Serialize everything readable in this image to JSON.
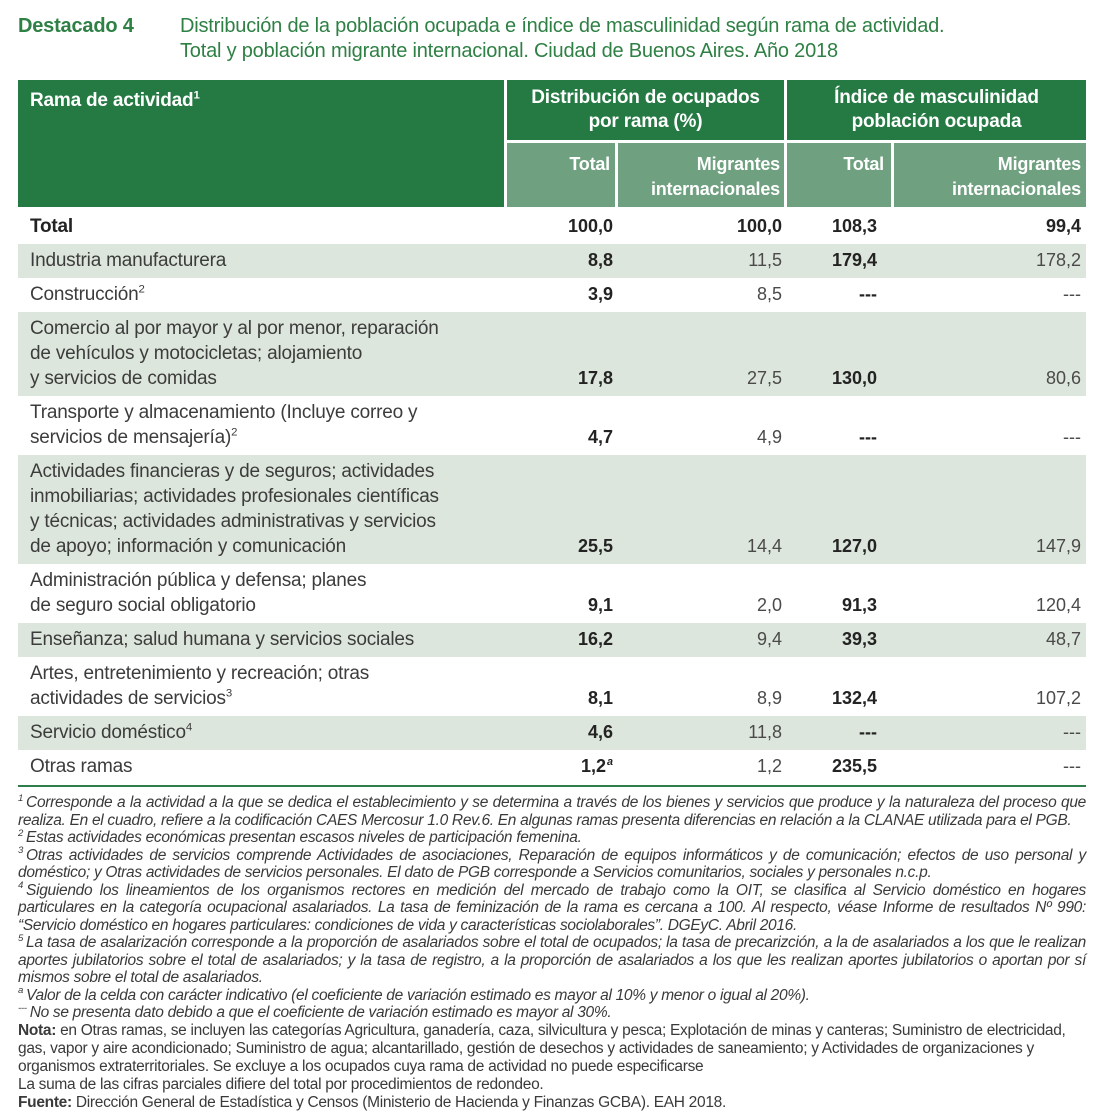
{
  "colors": {
    "header_green": "#257a43",
    "subheader_green": "#6fa07f",
    "row_stripe": "#dde6dc",
    "title_green": "#2e8044",
    "rule_green": "#2e7d4b"
  },
  "page": {
    "kicker": "Destacado 4",
    "title": "Distribución de la población ocupada e índice de masculinidad según rama de actividad.\nTotal y población migrante internacional. Ciudad de Buenos Aires. Año 2018"
  },
  "table": {
    "col_rama_label": "Rama de actividad",
    "col_rama_sup": "1",
    "group1": "Distribución de ocupados\npor rama (%)",
    "group2": "Índice de masculinidad\npoblación ocupada",
    "sub_total1": "Total",
    "sub_migr1": "Migrantes\ninternacionales",
    "sub_total2": "Total",
    "sub_migr2": "Migrantes\ninternacionales",
    "rows": [
      {
        "label": "Total",
        "d_total": "100,0",
        "d_migr": "100,0",
        "m_total": "108,3",
        "m_migr": "99,4"
      },
      {
        "label": "Industria manufacturera",
        "d_total": "8,8",
        "d_migr": "11,5",
        "m_total": "179,4",
        "m_migr": "178,2"
      },
      {
        "label": "Construcción",
        "sup": "2",
        "d_total": "3,9",
        "d_migr": "8,5",
        "m_total": "---",
        "m_migr": "---"
      },
      {
        "label": "Comercio al por mayor y al por menor, reparación\nde vehículos y motocicletas; alojamiento\ny servicios de comidas",
        "d_total": "17,8",
        "d_migr": "27,5",
        "m_total": "130,0",
        "m_migr": "80,6"
      },
      {
        "label": "Transporte y almacenamiento (Incluye correo y\nservicios de mensajería)",
        "sup": "2",
        "d_total": "4,7",
        "d_migr": "4,9",
        "m_total": "---",
        "m_migr": "---"
      },
      {
        "label": "Actividades financieras y de seguros; actividades\ninmobiliarias; actividades profesionales científicas\ny técnicas; actividades administrativas y servicios\nde apoyo; información y comunicación",
        "d_total": "25,5",
        "d_migr": "14,4",
        "m_total": "127,0",
        "m_migr": "147,9"
      },
      {
        "label": "Administración pública y defensa; planes\nde seguro social obligatorio",
        "d_total": "9,1",
        "d_migr": "2,0",
        "m_total": "91,3",
        "m_migr": "120,4"
      },
      {
        "label": "Enseñanza; salud humana y servicios sociales",
        "d_total": "16,2",
        "d_migr": "9,4",
        "m_total": "39,3",
        "m_migr": "48,7"
      },
      {
        "label": "Artes, entretenimiento y recreación; otras\nactividades de servicios",
        "sup": "3",
        "d_total": "8,1",
        "d_migr": "8,9",
        "m_total": "132,4",
        "m_migr": "107,2"
      },
      {
        "label": "Servicio doméstico",
        "sup": "4",
        "d_total": "4,6",
        "d_migr": "11,8",
        "m_total": "---",
        "m_migr": "---"
      },
      {
        "label": "Otras ramas",
        "d_total": "1,2",
        "d_total_sup": "a",
        "d_migr": "1,2",
        "m_total": "235,5",
        "m_migr": "---"
      }
    ]
  },
  "footnotes": [
    {
      "marker": "1",
      "text": "Corresponde a la actividad a la que se dedica el establecimiento y se determina a través de los bienes y servicios que produce y la naturaleza del proceso que realiza. En el cuadro, refiere a la codificación CAES Mercosur 1.0 Rev.6. En algunas ramas presenta diferencias en relación a la CLANAE utilizada para el PGB."
    },
    {
      "marker": "2",
      "text": "Estas actividades económicas presentan escasos niveles de participación femenina."
    },
    {
      "marker": "3",
      "text": "Otras actividades de servicios comprende Actividades de asociaciones, Reparación de equipos informáticos y de comunicación; efectos de uso personal y doméstico; y Otras actividades de servicios personales. El dato de PGB corresponde a  Servicios comunitarios, sociales y personales n.c.p."
    },
    {
      "marker": "4",
      "text": "Siguiendo los lineamientos de los organismos rectores en medición del mercado de trabajo como la OIT, se clasifica al Servicio doméstico en hogares particulares en la categoría ocupacional asalariados. La tasa de feminización de la rama es cercana a 100. Al respecto, véase Informe de resultados Nº 990: “Servicio doméstico en hogares particulares: condiciones de vida y características sociolaborales”. DGEyC. Abril 2016."
    },
    {
      "marker": "5",
      "text": "La tasa de asalarización corresponde a la proporción de asalariados sobre el total de ocupados; la tasa de precarizción, a la de asalariados a los que le realizan aportes jubilatorios sobre el total de asalariados; y  la tasa de registro, a la proporción de asalariados a los que les realizan aportes jubilatorios o aportan por sí mismos sobre el total de asalariados."
    },
    {
      "marker": "a",
      "text": "Valor de la celda con carácter indicativo (el coeficiente de variación estimado es mayor al 10% y menor o igual al 20%)."
    },
    {
      "marker": "---",
      "text": "No se presenta dato debido a que el coeficiente de variación estimado es mayor al 30%."
    }
  ],
  "notes": {
    "nota_label": "Nota:",
    "nota_text": "en Otras ramas, se incluyen las categorías Agricultura, ganadería, caza, silvicultura y pesca; Explotación de minas y canteras; Suministro de electricidad, gas, vapor y aire acondicionado; Suministro de agua; alcantarillado, gestión de desechos y actividades de saneamiento; y Actividades de organizaciones y organismos extraterritoriales. Se excluye a los ocupados cuya rama de actividad no puede especificarse",
    "redondeo": "La suma de las cifras parciales difiere del total por procedimientos de redondeo.",
    "fuente_label": "Fuente:",
    "fuente_text": "Dirección General de Estadística y Censos (Ministerio de Hacienda y Finanzas GCBA). EAH 2018."
  }
}
